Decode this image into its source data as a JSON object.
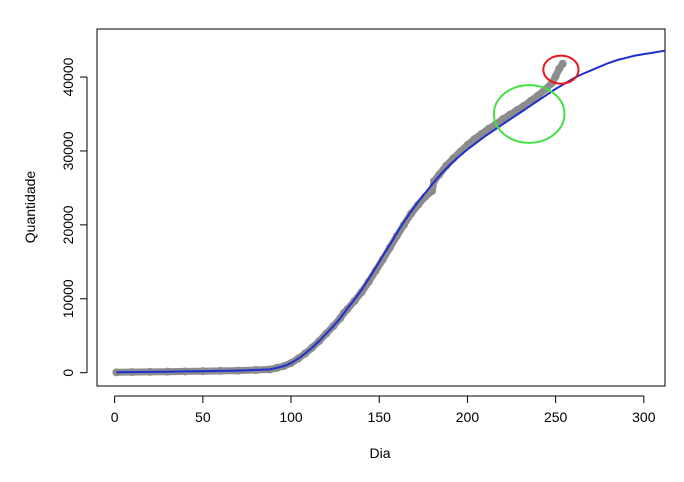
{
  "chart_data": {
    "type": "scatter",
    "xlabel": "Dia",
    "ylabel": "Quantidade",
    "xlim": [
      -10,
      312
    ],
    "ylim": [
      -1800,
      46500
    ],
    "xticks": [
      0,
      50,
      100,
      150,
      200,
      250,
      300
    ],
    "yticks": [
      0,
      10000,
      20000,
      30000,
      40000
    ],
    "grid": false,
    "legend": "none",
    "series": [
      {
        "kind": "points",
        "color": "#8c8c8c",
        "x": [
          1,
          10,
          20,
          30,
          40,
          50,
          60,
          70,
          80,
          88,
          92,
          96,
          100,
          104,
          108,
          112,
          116,
          120,
          124,
          128,
          130,
          132,
          136,
          140,
          144,
          148,
          152,
          156,
          160,
          164,
          168,
          172,
          176,
          180,
          181,
          184,
          188,
          192,
          196,
          200,
          204,
          208,
          212,
          216,
          220,
          224,
          228,
          232,
          236,
          240,
          244,
          248,
          250,
          252,
          254
        ],
        "y": [
          50,
          80,
          110,
          140,
          170,
          200,
          240,
          280,
          360,
          450,
          650,
          900,
          1300,
          1900,
          2600,
          3400,
          4300,
          5300,
          6300,
          7400,
          8100,
          8600,
          9700,
          10900,
          12300,
          13800,
          15300,
          16900,
          18500,
          20000,
          21500,
          22700,
          23800,
          24600,
          25900,
          26800,
          28000,
          29000,
          29900,
          30800,
          31600,
          32300,
          33000,
          33600,
          34300,
          34900,
          35500,
          36100,
          36800,
          37500,
          38300,
          39200,
          40100,
          41100,
          41800
        ]
      },
      {
        "kind": "line",
        "color": "#1f2fd0",
        "x": [
          1,
          10,
          20,
          30,
          40,
          50,
          60,
          70,
          80,
          88,
          92,
          96,
          100,
          104,
          108,
          112,
          116,
          120,
          124,
          128,
          132,
          136,
          140,
          144,
          148,
          152,
          156,
          160,
          164,
          168,
          172,
          176,
          180,
          185,
          190,
          195,
          200,
          205,
          210,
          215,
          220,
          225,
          230,
          235,
          240,
          245,
          250,
          255,
          260,
          265,
          270,
          275,
          280,
          285,
          290,
          295,
          300,
          305,
          310,
          312
        ],
        "y": [
          50,
          80,
          110,
          140,
          170,
          200,
          240,
          280,
          360,
          450,
          650,
          900,
          1300,
          1900,
          2600,
          3400,
          4300,
          5300,
          6300,
          7400,
          8700,
          9900,
          11200,
          12700,
          14200,
          15800,
          17300,
          18900,
          20400,
          21800,
          23100,
          24300,
          25500,
          26900,
          28100,
          29200,
          30200,
          31100,
          32000,
          32800,
          33600,
          34400,
          35200,
          36000,
          36800,
          37600,
          38400,
          39100,
          39800,
          40400,
          40900,
          41400,
          41900,
          42300,
          42600,
          42900,
          43100,
          43300,
          43500,
          43550
        ]
      }
    ],
    "annotations": [
      {
        "shape": "circle",
        "color": "#44e044",
        "cx": 235,
        "cy": 35000,
        "rx": 20,
        "ry": 3900
      },
      {
        "shape": "circle",
        "color": "#e8161b",
        "cx": 253,
        "cy": 41000,
        "rx": 10,
        "ry": 1900
      }
    ]
  }
}
